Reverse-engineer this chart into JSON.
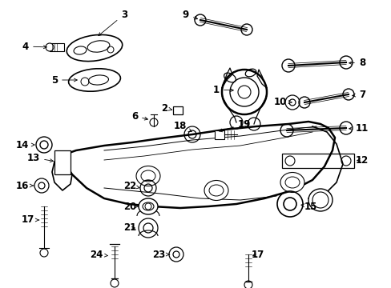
{
  "background_color": "#ffffff",
  "figsize": [
    4.89,
    3.6
  ],
  "dpi": 100,
  "line_color": "#000000",
  "font_color": "#000000",
  "font_size": 8.5
}
